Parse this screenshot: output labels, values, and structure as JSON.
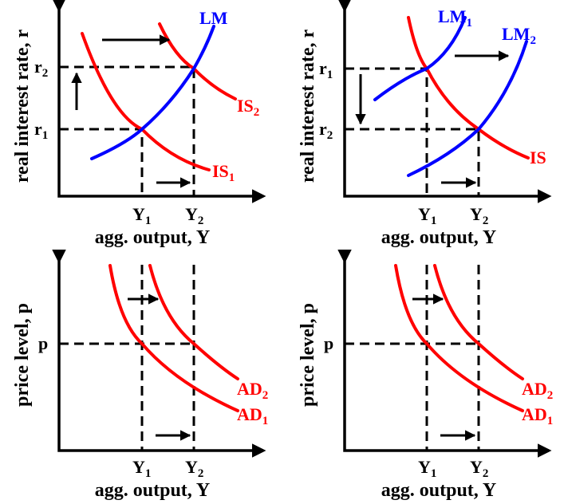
{
  "diagram": {
    "colors": {
      "is_ad": "#ff0000",
      "lm": "#0000ff",
      "axes": "#000000"
    },
    "axis_labels": {
      "interest": "real interest rate, r",
      "price": "price level, p",
      "output": "agg. output, Y"
    },
    "panels": [
      {
        "tl": {
          "y_ticks": [
            {
              "base": "r",
              "sub": "2"
            },
            {
              "base": "r",
              "sub": "1"
            }
          ],
          "x_ticks": [
            {
              "base": "Y",
              "sub": "1"
            },
            {
              "base": "Y",
              "sub": "2"
            }
          ],
          "curves": {
            "lm": {
              "base": "LM",
              "sub": ""
            },
            "is2": {
              "base": "IS",
              "sub": "2"
            },
            "is1": {
              "base": "IS",
              "sub": "1"
            }
          }
        }
      },
      {
        "tr": {
          "y_ticks": [
            {
              "base": "r",
              "sub": "1"
            },
            {
              "base": "r",
              "sub": "2"
            }
          ],
          "x_ticks": [
            {
              "base": "Y",
              "sub": "1"
            },
            {
              "base": "Y",
              "sub": "2"
            }
          ],
          "curves": {
            "lm1": {
              "base": "LM",
              "sub": "1"
            },
            "lm2": {
              "base": "LM",
              "sub": "2"
            },
            "is": {
              "base": "IS",
              "sub": ""
            }
          }
        }
      },
      {
        "bl": {
          "y_ticks": [
            {
              "base": "p",
              "sub": ""
            }
          ],
          "x_ticks": [
            {
              "base": "Y",
              "sub": "1"
            },
            {
              "base": "Y",
              "sub": "2"
            }
          ],
          "curves": {
            "ad2": {
              "base": "AD",
              "sub": "2"
            },
            "ad1": {
              "base": "AD",
              "sub": "1"
            }
          }
        }
      },
      {
        "br": {
          "y_ticks": [
            {
              "base": "p",
              "sub": ""
            }
          ],
          "x_ticks": [
            {
              "base": "Y",
              "sub": "1"
            },
            {
              "base": "Y",
              "sub": "2"
            }
          ],
          "curves": {
            "ad2": {
              "base": "AD",
              "sub": "2"
            },
            "ad1": {
              "base": "AD",
              "sub": "1"
            }
          }
        }
      }
    ]
  }
}
